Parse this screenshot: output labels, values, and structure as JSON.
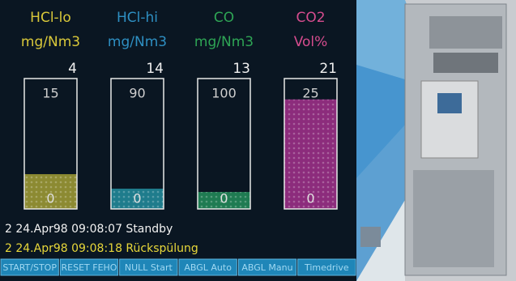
{
  "gauges": [
    {
      "label": "HCl-lo",
      "unit": "mg/Nm3",
      "value": 4,
      "max": 15,
      "min": 0,
      "text_color": "#d9c83a",
      "fill_color": "#8c8a32"
    },
    {
      "label": "HCl-hi",
      "unit": "mg/Nm3",
      "value": 14,
      "max": 90,
      "min": 0,
      "text_color": "#2e8fc2",
      "fill_color": "#1f7c8c"
    },
    {
      "label": "CO",
      "unit": "mg/Nm3",
      "value": 13,
      "max": 100,
      "min": 0,
      "text_color": "#2ea555",
      "fill_color": "#1f7b52"
    },
    {
      "label": "CO2",
      "unit": "Vol%",
      "value": 21,
      "max": 25,
      "min": 0,
      "text_color": "#d64c8e",
      "fill_color": "#8c2c7c"
    }
  ],
  "log": [
    {
      "text": "2  24.Apr98 09:08:07  Standby",
      "color": "#f2f2f2"
    },
    {
      "text": "2  24.Apr98 09:08:18  Rückspülung",
      "color": "#e8d83a"
    }
  ],
  "buttons": [
    "START/STOP",
    "RESET FEHO",
    "NULL Start",
    "ABGL Auto",
    "ABGL Manu",
    "Timedrive"
  ]
}
